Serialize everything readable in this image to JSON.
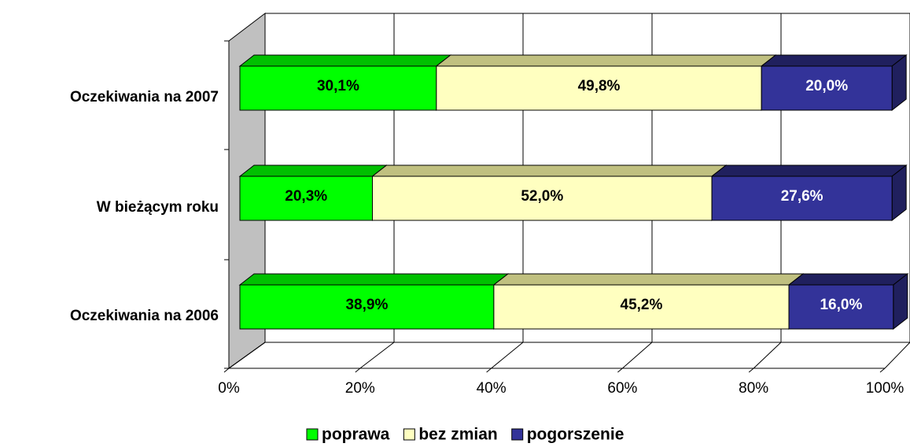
{
  "chart_data": {
    "type": "bar3d_stacked_horizontal",
    "categories": [
      "Oczekiwania na 2007",
      "W bieżącym roku",
      "Oczekiwania na 2006"
    ],
    "series": [
      {
        "name": "poprawa",
        "color": "#00ff00",
        "values": [
          30.1,
          20.3,
          38.9
        ],
        "value_labels": [
          "30,1%",
          "20,3%",
          "38,9%"
        ]
      },
      {
        "name": "bez zmian",
        "color": "#ffffc0",
        "values": [
          49.8,
          52.0,
          45.2
        ],
        "value_labels": [
          "49,8%",
          "52,0%",
          "45,2%"
        ]
      },
      {
        "name": "pogorszenie",
        "color": "#333399",
        "values": [
          20.0,
          27.6,
          16.0
        ],
        "value_labels": [
          "20,0%",
          "27,6%",
          "16,0%"
        ]
      }
    ],
    "xlim": [
      0,
      100
    ],
    "xticks": [
      {
        "value": 0,
        "label": "0%"
      },
      {
        "value": 20,
        "label": "20%"
      },
      {
        "value": 40,
        "label": "40%"
      },
      {
        "value": 60,
        "label": "60%"
      },
      {
        "value": 80,
        "label": "80%"
      },
      {
        "value": 100,
        "label": "100%"
      }
    ],
    "grid": true,
    "legend": "bottom"
  }
}
